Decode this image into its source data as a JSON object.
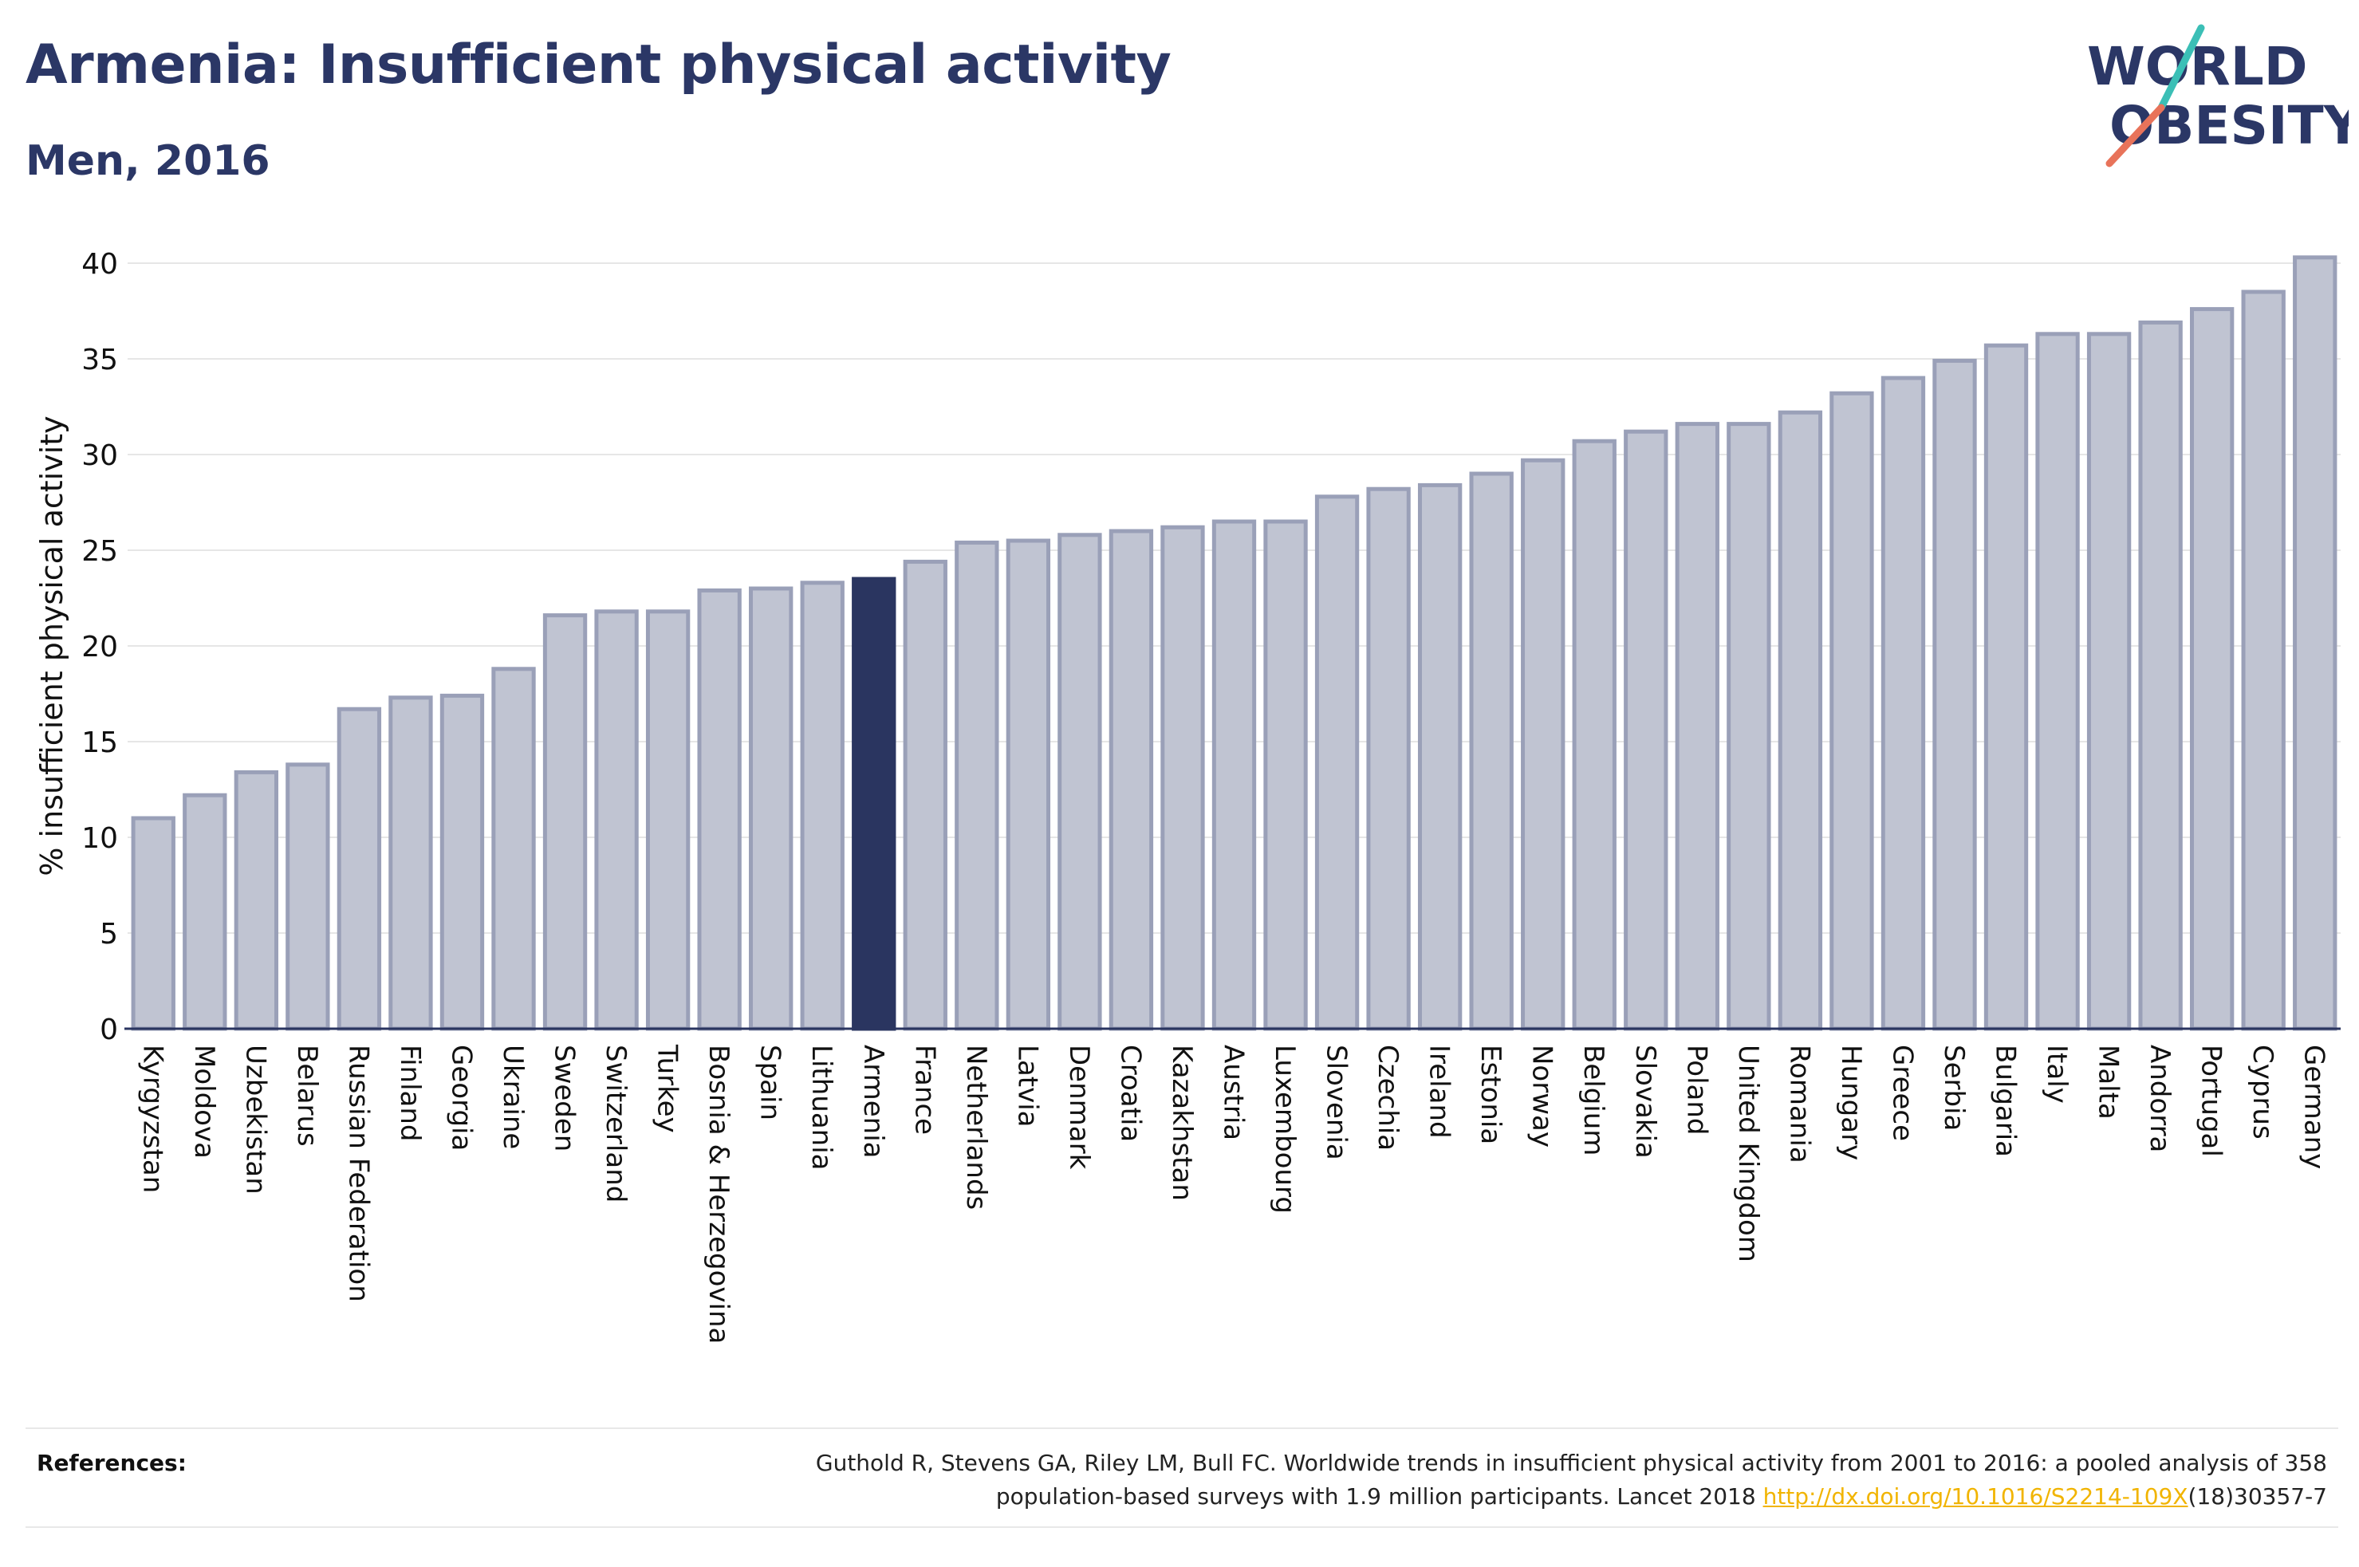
{
  "header": {
    "title": "Armenia: Insufficient physical activity",
    "subtitle": "Men, 2016"
  },
  "logo": {
    "line1": "WORLD",
    "line2": "OBESITY",
    "colors": {
      "text": "#2b3766",
      "slash_top": "#3bbfb6",
      "slash_bottom": "#e8735a"
    }
  },
  "chart_data": {
    "type": "bar",
    "ylabel": "% insufficient physical activity",
    "ylim": [
      0,
      40
    ],
    "yticks": [
      0,
      5,
      10,
      15,
      20,
      25,
      30,
      35,
      40
    ],
    "grid": true,
    "highlight": "Armenia",
    "colors": {
      "bar": "#c0c4d2",
      "bar_border": "#9aa0b8",
      "highlight": "#2a3560"
    },
    "categories": [
      "Kyrgyzstan",
      "Moldova",
      "Uzbekistan",
      "Belarus",
      "Russian Federation",
      "Finland",
      "Georgia",
      "Ukraine",
      "Sweden",
      "Switzerland",
      "Turkey",
      "Bosnia & Herzegovina",
      "Spain",
      "Lithuania",
      "Armenia",
      "France",
      "Netherlands",
      "Latvia",
      "Denmark",
      "Croatia",
      "Kazakhstan",
      "Austria",
      "Luxembourg",
      "Slovenia",
      "Czechia",
      "Ireland",
      "Estonia",
      "Norway",
      "Belgium",
      "Slovakia",
      "Poland",
      "United Kingdom",
      "Romania",
      "Hungary",
      "Greece",
      "Serbia",
      "Bulgaria",
      "Italy",
      "Malta",
      "Andorra",
      "Portugal",
      "Cyprus",
      "Germany"
    ],
    "values": [
      11.0,
      12.2,
      13.4,
      13.8,
      16.7,
      17.3,
      17.4,
      18.8,
      21.6,
      21.8,
      21.8,
      22.9,
      23.0,
      23.3,
      23.5,
      24.4,
      25.4,
      25.5,
      25.8,
      26.0,
      26.2,
      26.5,
      26.5,
      27.8,
      28.2,
      28.4,
      29.0,
      29.7,
      30.7,
      31.2,
      31.6,
      31.6,
      32.2,
      33.2,
      34.0,
      34.9,
      35.7,
      36.3,
      36.3,
      36.9,
      37.6,
      38.5,
      40.3
    ]
  },
  "references": {
    "label": "References:",
    "line1": "Guthold R, Stevens GA, Riley LM, Bull FC. Worldwide trends in insufficient physical activity from 2001 to 2016: a pooled analysis of 358",
    "line2_prefix": "population-based surveys with 1.9 million participants. Lancet 2018 ",
    "link": "http://dx.doi.org/10.1016/S2214-109X",
    "line2_suffix": "(18)30357-7"
  }
}
